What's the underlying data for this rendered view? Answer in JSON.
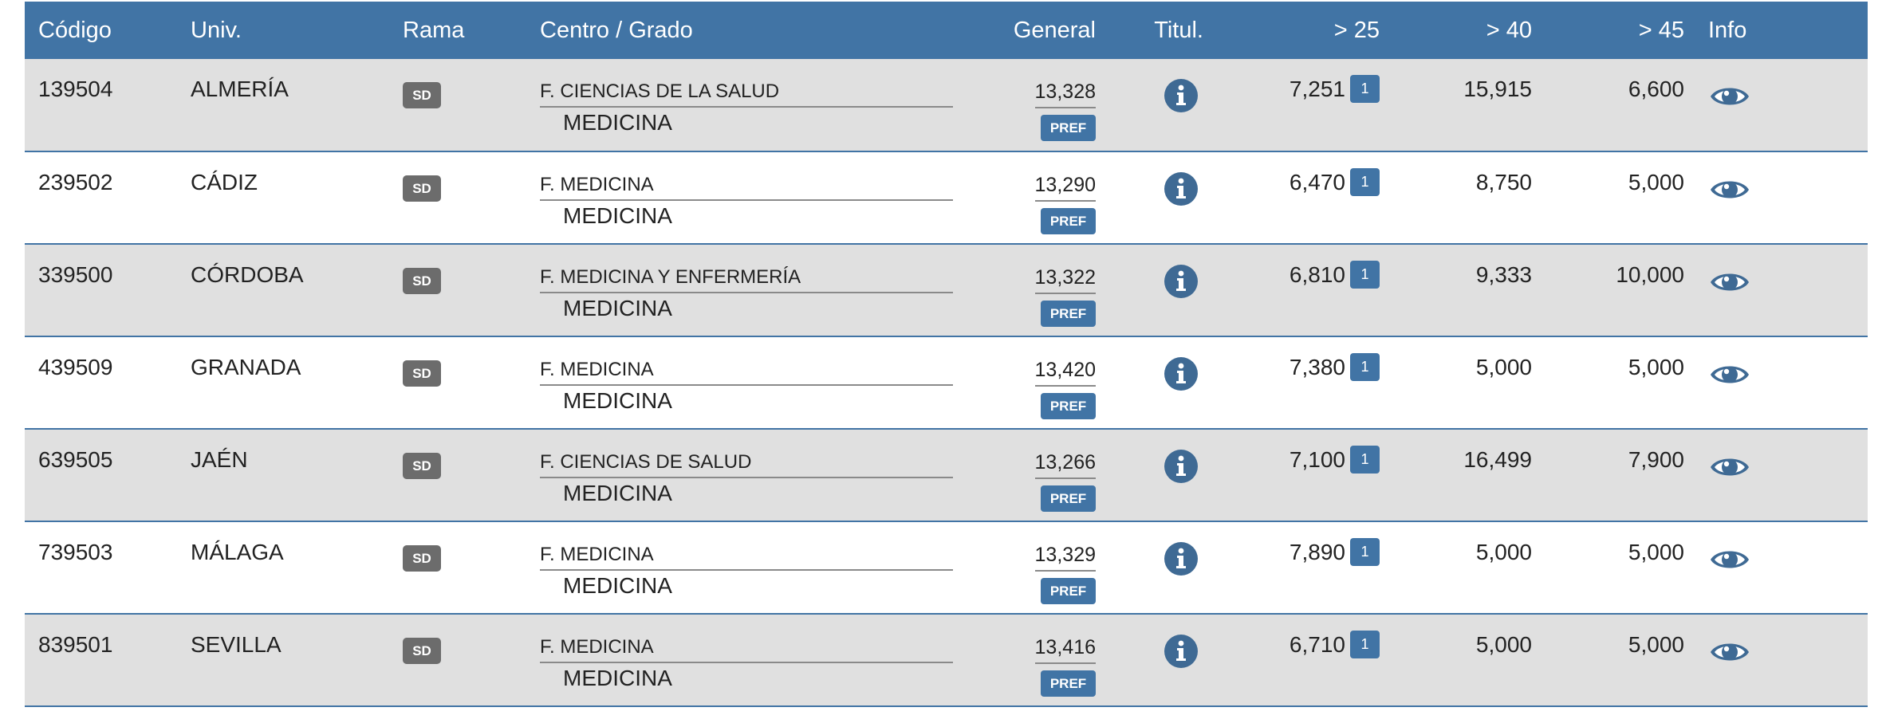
{
  "headers": {
    "codigo": "Código",
    "univ": "Univ.",
    "rama": "Rama",
    "centro_grado": "Centro / Grado",
    "general": "General",
    "titul": "Titul.",
    "gt25": "> 25",
    "gt40": "> 40",
    "gt45": "> 45",
    "info": "Info"
  },
  "colors": {
    "header_bg": "#4174a5",
    "row_alt_bg": "#e0e0e0",
    "badge_gray": "#6c6c6c",
    "accent_blue": "#4174a5"
  },
  "icons": {
    "titul": "info-circle-icon",
    "info": "eye-icon"
  },
  "rows": [
    {
      "codigo": "139504",
      "univ": "ALMERÍA",
      "rama": "SD",
      "centro": "F. CIENCIAS DE LA SALUD",
      "grado": "MEDICINA",
      "general": "13,328",
      "pref": "PREF",
      "gt25": "7,251",
      "gt25_badge": "1",
      "gt40": "15,915",
      "gt45": "6,600"
    },
    {
      "codigo": "239502",
      "univ": "CÁDIZ",
      "rama": "SD",
      "centro": "F. MEDICINA",
      "grado": "MEDICINA",
      "general": "13,290",
      "pref": "PREF",
      "gt25": "6,470",
      "gt25_badge": "1",
      "gt40": "8,750",
      "gt45": "5,000"
    },
    {
      "codigo": "339500",
      "univ": "CÓRDOBA",
      "rama": "SD",
      "centro": "F. MEDICINA Y ENFERMERÍA",
      "grado": "MEDICINA",
      "general": "13,322",
      "pref": "PREF",
      "gt25": "6,810",
      "gt25_badge": "1",
      "gt40": "9,333",
      "gt45": "10,000"
    },
    {
      "codigo": "439509",
      "univ": "GRANADA",
      "rama": "SD",
      "centro": "F. MEDICINA",
      "grado": "MEDICINA",
      "general": "13,420",
      "pref": "PREF",
      "gt25": "7,380",
      "gt25_badge": "1",
      "gt40": "5,000",
      "gt45": "5,000"
    },
    {
      "codigo": "639505",
      "univ": "JAÉN",
      "rama": "SD",
      "centro": "F. CIENCIAS DE SALUD",
      "grado": "MEDICINA",
      "general": "13,266",
      "pref": "PREF",
      "gt25": "7,100",
      "gt25_badge": "1",
      "gt40": "16,499",
      "gt45": "7,900"
    },
    {
      "codigo": "739503",
      "univ": "MÁLAGA",
      "rama": "SD",
      "centro": "F. MEDICINA",
      "grado": "MEDICINA",
      "general": "13,329",
      "pref": "PREF",
      "gt25": "7,890",
      "gt25_badge": "1",
      "gt40": "5,000",
      "gt45": "5,000"
    },
    {
      "codigo": "839501",
      "univ": "SEVILLA",
      "rama": "SD",
      "centro": "F. MEDICINA",
      "grado": "MEDICINA",
      "general": "13,416",
      "pref": "PREF",
      "gt25": "6,710",
      "gt25_badge": "1",
      "gt40": "5,000",
      "gt45": "5,000"
    }
  ]
}
